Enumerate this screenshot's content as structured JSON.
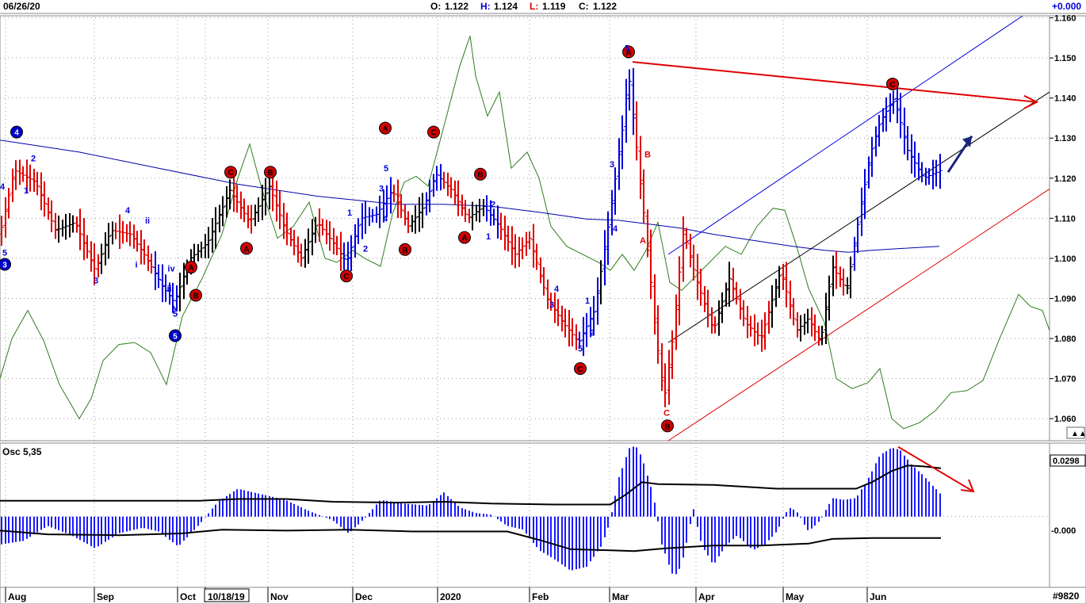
{
  "header": {
    "date": "06/26/20",
    "o_label": "O:",
    "o_value": "1.122",
    "h_label": "H:",
    "h_value": "1.124",
    "l_label": "L:",
    "l_value": "1.119",
    "c_label": "C:",
    "c_value": "1.122",
    "change": "+0.000"
  },
  "bottom_right_label": "#9820",
  "osc": {
    "label": "Osc 5,35",
    "current_value": "0.0298",
    "zero_label": "-0.000"
  },
  "colors": {
    "up_bar": "#000000",
    "down_bar": "#e00000",
    "wave_blue": "#0000dd",
    "ma": "#0000aa",
    "osc_line": "#2e7d1e",
    "hist": "#1a1aff"
  },
  "chart_data": {
    "type": "ohlc",
    "title": "",
    "x_ticks": [
      "Aug",
      "Sep",
      "Oct",
      "10/18/19",
      "Nov",
      "Dec",
      "2020",
      "Feb",
      "Mar",
      "Apr",
      "May",
      "Jun"
    ],
    "y_ticks": [
      "1.160",
      "1.150",
      "1.140",
      "1.130",
      "1.120",
      "1.110",
      "1.100",
      "1.090",
      "1.080",
      "1.070",
      "1.060"
    ],
    "ylim": [
      1.0545,
      1.1605
    ],
    "grid": true,
    "last_close": 1.122,
    "price_path": [
      [
        0,
        1.106
      ],
      [
        18,
        1.122
      ],
      [
        45,
        1.119
      ],
      [
        70,
        1.107
      ],
      [
        95,
        1.109
      ],
      [
        120,
        1.097
      ],
      [
        140,
        1.107
      ],
      [
        165,
        1.106
      ],
      [
        185,
        1.1
      ],
      [
        205,
        1.093
      ],
      [
        220,
        1.089
      ],
      [
        240,
        1.1
      ],
      [
        262,
        1.104
      ],
      [
        290,
        1.117
      ],
      [
        315,
        1.109
      ],
      [
        340,
        1.118
      ],
      [
        360,
        1.107
      ],
      [
        380,
        1.1
      ],
      [
        400,
        1.109
      ],
      [
        420,
        1.104
      ],
      [
        437,
        1.099
      ],
      [
        455,
        1.11
      ],
      [
        475,
        1.111
      ],
      [
        495,
        1.117
      ],
      [
        515,
        1.108
      ],
      [
        535,
        1.113
      ],
      [
        550,
        1.121
      ],
      [
        570,
        1.117
      ],
      [
        590,
        1.11
      ],
      [
        610,
        1.113
      ],
      [
        630,
        1.108
      ],
      [
        650,
        1.101
      ],
      [
        668,
        1.105
      ],
      [
        690,
        1.09
      ],
      [
        710,
        1.084
      ],
      [
        730,
        1.079
      ],
      [
        750,
        1.087
      ],
      [
        768,
        1.109
      ],
      [
        785,
        1.132
      ],
      [
        793,
        1.146
      ],
      [
        805,
        1.124
      ],
      [
        815,
        1.106
      ],
      [
        828,
        1.08
      ],
      [
        838,
        1.065
      ],
      [
        850,
        1.082
      ],
      [
        862,
        1.107
      ],
      [
        878,
        1.095
      ],
      [
        900,
        1.082
      ],
      [
        920,
        1.095
      ],
      [
        940,
        1.084
      ],
      [
        960,
        1.08
      ],
      [
        985,
        1.097
      ],
      [
        1005,
        1.082
      ],
      [
        1020,
        1.085
      ],
      [
        1035,
        1.079
      ],
      [
        1050,
        1.098
      ],
      [
        1068,
        1.092
      ],
      [
        1085,
        1.112
      ],
      [
        1098,
        1.126
      ],
      [
        1110,
        1.134
      ],
      [
        1128,
        1.14
      ],
      [
        1145,
        1.127
      ],
      [
        1165,
        1.12
      ],
      [
        1187,
        1.122
      ]
    ],
    "labels_red": [
      {
        "t": "A",
        "x": 793,
        "y": 1.1515
      },
      {
        "t": "C",
        "x": 1126,
        "y": 1.1435
      },
      {
        "t": "A",
        "x": 486,
        "y": 1.1325
      },
      {
        "t": "C",
        "x": 547,
        "y": 1.1315
      },
      {
        "t": "C",
        "x": 291,
        "y": 1.1215
      },
      {
        "t": "B",
        "x": 341,
        "y": 1.1215
      },
      {
        "t": "B",
        "x": 606,
        "y": 1.121
      },
      {
        "t": "A",
        "x": 311,
        "y": 1.1025
      },
      {
        "t": "B",
        "x": 511,
        "y": 1.1022
      },
      {
        "t": "A",
        "x": 586,
        "y": 1.1052
      },
      {
        "t": "A",
        "x": 241,
        "y": 1.0978
      },
      {
        "t": "B",
        "x": 247,
        "y": 1.0908
      },
      {
        "t": "C",
        "x": 437,
        "y": 1.0956
      },
      {
        "t": "C",
        "x": 732,
        "y": 1.0725
      },
      {
        "t": "B",
        "x": 842,
        "y": 1.0582
      }
    ],
    "labels_blue_circle": [
      {
        "t": "4",
        "x": 21,
        "y": 1.1315
      },
      {
        "t": "3",
        "x": 6,
        "y": 1.0985
      },
      {
        "t": "5",
        "x": 221,
        "y": 1.0807
      }
    ],
    "wave_text_blue": [
      {
        "t": "2",
        "x": 42,
        "y": 1.125
      },
      {
        "t": "1",
        "x": 33,
        "y": 1.117
      },
      {
        "t": "4",
        "x": 3,
        "y": 1.118
      },
      {
        "t": "5",
        "x": 6,
        "y": 1.1015
      },
      {
        "t": "4",
        "x": 161,
        "y": 1.112
      },
      {
        "t": "ii",
        "x": 186,
        "y": 1.1095
      },
      {
        "t": "i",
        "x": 172,
        "y": 1.0985
      },
      {
        "t": "3",
        "x": 121,
        "y": 1.0945
      },
      {
        "t": "iv",
        "x": 216,
        "y": 1.0975
      },
      {
        "t": "iii",
        "x": 212,
        "y": 1.0925
      },
      {
        "t": "v",
        "x": 221,
        "y": 1.0878
      },
      {
        "t": "5",
        "x": 221,
        "y": 1.0862
      },
      {
        "t": "1",
        "x": 441,
        "y": 1.1115
      },
      {
        "t": "2",
        "x": 461,
        "y": 1.1025
      },
      {
        "t": "5",
        "x": 487,
        "y": 1.1225
      },
      {
        "t": "3",
        "x": 481,
        "y": 1.1175
      },
      {
        "t": "4",
        "x": 486,
        "y": 1.11
      },
      {
        "t": "2",
        "x": 622,
        "y": 1.1135
      },
      {
        "t": "1",
        "x": 616,
        "y": 1.1055
      },
      {
        "t": "4",
        "x": 702,
        "y": 1.0925
      },
      {
        "t": "3",
        "x": 696,
        "y": 1.0885
      },
      {
        "t": "1",
        "x": 741,
        "y": 1.0895
      },
      {
        "t": "2",
        "x": 747,
        "y": 1.0815
      },
      {
        "t": "5",
        "x": 732,
        "y": 1.0775
      },
      {
        "t": "5",
        "x": 791,
        "y": 1.1525
      },
      {
        "t": "3",
        "x": 772,
        "y": 1.1235
      },
      {
        "t": "4",
        "x": 776,
        "y": 1.1075
      }
    ],
    "wave_text_red": [
      {
        "t": "B",
        "x": 817,
        "y": 1.126
      },
      {
        "t": "A",
        "x": 811,
        "y": 1.1045
      },
      {
        "t": "C",
        "x": 841,
        "y": 1.0615
      }
    ],
    "ma200": [
      [
        0,
        1.1295
      ],
      [
        100,
        1.1265
      ],
      [
        200,
        1.1225
      ],
      [
        300,
        1.1185
      ],
      [
        400,
        1.1155
      ],
      [
        500,
        1.1135
      ],
      [
        560,
        1.1135
      ],
      [
        620,
        1.113
      ],
      [
        680,
        1.1115
      ],
      [
        740,
        1.1098
      ],
      [
        780,
        1.1095
      ],
      [
        820,
        1.1085
      ],
      [
        860,
        1.1075
      ],
      [
        900,
        1.106
      ],
      [
        950,
        1.1045
      ],
      [
        1000,
        1.103
      ],
      [
        1040,
        1.102
      ],
      [
        1070,
        1.1015
      ],
      [
        1100,
        1.102
      ],
      [
        1140,
        1.1025
      ],
      [
        1185,
        1.103
      ]
    ],
    "channel_blue": {
      "x1": 843,
      "y1": 1.101,
      "x2": 1290,
      "y2": 1.1605
    },
    "channel_black": {
      "x1": 843,
      "y1": 1.079,
      "x2": 1324,
      "y2": 1.1415
    },
    "channel_red": {
      "x1": 843,
      "y1": 1.0545,
      "x2": 1324,
      "y2": 1.1173
    },
    "trend_red": {
      "x1": 798,
      "y1": 1.149,
      "x2": 1308,
      "y2": 1.139
    },
    "projection_arrow": {
      "x1": 1196,
      "y1": 1.1215,
      "x2": 1226,
      "y2": 1.1305
    },
    "osc_green_line": [
      [
        0,
        1.07
      ],
      [
        15,
        1.08
      ],
      [
        35,
        1.087
      ],
      [
        55,
        1.0795
      ],
      [
        75,
        1.0685
      ],
      [
        100,
        1.06
      ],
      [
        115,
        1.065
      ],
      [
        130,
        1.0745
      ],
      [
        150,
        1.0785
      ],
      [
        170,
        1.079
      ],
      [
        190,
        1.0765
      ],
      [
        210,
        1.0685
      ],
      [
        230,
        1.0855
      ],
      [
        255,
        1.095
      ],
      [
        280,
        1.106
      ],
      [
        300,
        1.12
      ],
      [
        315,
        1.1285
      ],
      [
        330,
        1.1175
      ],
      [
        350,
        1.105
      ],
      [
        370,
        1.108
      ],
      [
        390,
        1.114
      ],
      [
        410,
        1.1
      ],
      [
        425,
        1.099
      ],
      [
        445,
        1.102
      ],
      [
        460,
        1.1
      ],
      [
        480,
        1.098
      ],
      [
        495,
        1.111
      ],
      [
        510,
        1.119
      ],
      [
        525,
        1.1205
      ],
      [
        540,
        1.118
      ],
      [
        560,
        1.133
      ],
      [
        580,
        1.148
      ],
      [
        593,
        1.1555
      ],
      [
        600,
        1.1455
      ],
      [
        615,
        1.1355
      ],
      [
        630,
        1.1415
      ],
      [
        645,
        1.1225
      ],
      [
        665,
        1.1265
      ],
      [
        680,
        1.12
      ],
      [
        695,
        1.108
      ],
      [
        715,
        1.103
      ],
      [
        740,
        1.1005
      ],
      [
        755,
        1.099
      ],
      [
        770,
        1.097
      ],
      [
        785,
        1.101
      ],
      [
        800,
        1.097
      ],
      [
        815,
        1.102
      ],
      [
        830,
        1.109
      ],
      [
        845,
        1.094
      ],
      [
        860,
        1.092
      ],
      [
        875,
        1.095
      ],
      [
        895,
        1.099
      ],
      [
        915,
        1.103
      ],
      [
        935,
        1.101
      ],
      [
        955,
        1.108
      ],
      [
        975,
        1.1125
      ],
      [
        990,
        1.112
      ],
      [
        1005,
        1.103
      ],
      [
        1020,
        1.0925
      ],
      [
        1040,
        1.084
      ],
      [
        1055,
        1.07
      ],
      [
        1075,
        1.0675
      ],
      [
        1095,
        1.069
      ],
      [
        1110,
        1.0725
      ],
      [
        1125,
        1.06
      ],
      [
        1140,
        1.0575
      ],
      [
        1160,
        1.059
      ],
      [
        1180,
        1.062
      ],
      [
        1200,
        1.0665
      ],
      [
        1220,
        1.067
      ],
      [
        1240,
        1.0695
      ],
      [
        1260,
        1.0795
      ],
      [
        1285,
        1.091
      ],
      [
        1300,
        1.088
      ],
      [
        1315,
        1.087
      ],
      [
        1324,
        1.082
      ]
    ],
    "osc_ylim": [
      -0.038,
      0.0395
    ],
    "osc_hist": [
      [
        0,
        -0.015
      ],
      [
        30,
        -0.013
      ],
      [
        60,
        -0.005
      ],
      [
        90,
        -0.01
      ],
      [
        120,
        -0.017
      ],
      [
        150,
        -0.009
      ],
      [
        180,
        -0.006
      ],
      [
        200,
        -0.008
      ],
      [
        225,
        -0.016
      ],
      [
        250,
        -0.005
      ],
      [
        275,
        0.008
      ],
      [
        300,
        0.015
      ],
      [
        330,
        0.012
      ],
      [
        360,
        0.009
      ],
      [
        390,
        0.003
      ],
      [
        420,
        -0.002
      ],
      [
        440,
        -0.009
      ],
      [
        460,
        -0.001
      ],
      [
        480,
        0.009
      ],
      [
        510,
        0.007
      ],
      [
        540,
        0.006
      ],
      [
        560,
        0.013
      ],
      [
        580,
        0.005
      ],
      [
        600,
        0.002
      ],
      [
        620,
        0.001
      ],
      [
        640,
        -0.005
      ],
      [
        660,
        -0.007
      ],
      [
        680,
        -0.018
      ],
      [
        700,
        -0.023
      ],
      [
        720,
        -0.029
      ],
      [
        740,
        -0.027
      ],
      [
        760,
        -0.015
      ],
      [
        770,
        -0.002
      ],
      [
        780,
        0.02
      ],
      [
        795,
        0.038
      ],
      [
        805,
        0.037
      ],
      [
        815,
        0.025
      ],
      [
        825,
        0.01
      ],
      [
        835,
        -0.015
      ],
      [
        850,
        -0.033
      ],
      [
        860,
        -0.026
      ],
      [
        875,
        0.004
      ],
      [
        885,
        -0.015
      ],
      [
        900,
        -0.026
      ],
      [
        915,
        -0.016
      ],
      [
        930,
        -0.01
      ],
      [
        950,
        -0.018
      ],
      [
        965,
        -0.015
      ],
      [
        980,
        -0.008
      ],
      [
        995,
        0.005
      ],
      [
        1005,
        0.003
      ],
      [
        1020,
        -0.008
      ],
      [
        1035,
        -0.002
      ],
      [
        1050,
        0.01
      ],
      [
        1065,
        0.009
      ],
      [
        1080,
        0.01
      ],
      [
        1095,
        0.02
      ],
      [
        1110,
        0.033
      ],
      [
        1125,
        0.037
      ],
      [
        1135,
        0.036
      ],
      [
        1150,
        0.028
      ],
      [
        1165,
        0.022
      ],
      [
        1187,
        0.012
      ]
    ],
    "osc_upper_line": [
      [
        0,
        0.0085
      ],
      [
        150,
        0.0085
      ],
      [
        250,
        0.0085
      ],
      [
        300,
        0.0095
      ],
      [
        360,
        0.0095
      ],
      [
        420,
        0.008
      ],
      [
        500,
        0.0075
      ],
      [
        560,
        0.008
      ],
      [
        620,
        0.007
      ],
      [
        700,
        0.0065
      ],
      [
        770,
        0.0065
      ],
      [
        790,
        0.012
      ],
      [
        810,
        0.0185
      ],
      [
        830,
        0.0175
      ],
      [
        900,
        0.017
      ],
      [
        980,
        0.015
      ],
      [
        1050,
        0.015
      ],
      [
        1080,
        0.015
      ],
      [
        1100,
        0.0185
      ],
      [
        1125,
        0.0245
      ],
      [
        1145,
        0.0275
      ],
      [
        1165,
        0.027
      ],
      [
        1187,
        0.026
      ]
    ],
    "osc_lower_line": [
      [
        0,
        -0.0075
      ],
      [
        60,
        -0.0095
      ],
      [
        150,
        -0.01
      ],
      [
        230,
        -0.009
      ],
      [
        280,
        -0.007
      ],
      [
        360,
        -0.0075
      ],
      [
        440,
        -0.007
      ],
      [
        520,
        -0.008
      ],
      [
        600,
        -0.008
      ],
      [
        640,
        -0.008
      ],
      [
        680,
        -0.0125
      ],
      [
        720,
        -0.0175
      ],
      [
        760,
        -0.018
      ],
      [
        800,
        -0.0185
      ],
      [
        840,
        -0.017
      ],
      [
        900,
        -0.0155
      ],
      [
        960,
        -0.0155
      ],
      [
        1020,
        -0.0145
      ],
      [
        1050,
        -0.012
      ],
      [
        1100,
        -0.0115
      ],
      [
        1187,
        -0.0115
      ]
    ],
    "osc_arrow": {
      "x1": 1133,
      "y1": 0.0375,
      "x2": 1228,
      "y2": 0.0135
    }
  }
}
